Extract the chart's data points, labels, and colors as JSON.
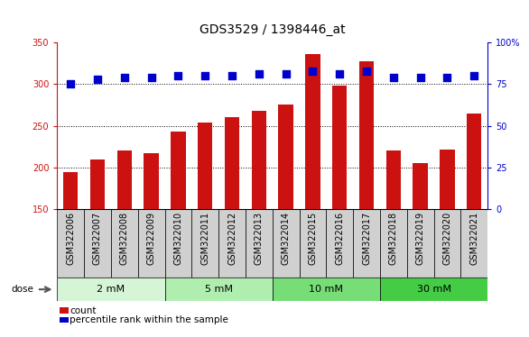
{
  "title": "GDS3529 / 1398446_at",
  "samples": [
    "GSM322006",
    "GSM322007",
    "GSM322008",
    "GSM322009",
    "GSM322010",
    "GSM322011",
    "GSM322012",
    "GSM322013",
    "GSM322014",
    "GSM322015",
    "GSM322016",
    "GSM322017",
    "GSM322018",
    "GSM322019",
    "GSM322020",
    "GSM322021"
  ],
  "counts": [
    195,
    210,
    221,
    217,
    243,
    254,
    260,
    268,
    276,
    336,
    298,
    327,
    221,
    205,
    222,
    265
  ],
  "percentiles": [
    75,
    78,
    79,
    79,
    80,
    80,
    80,
    81,
    81,
    83,
    81,
    83,
    79,
    79,
    79,
    80
  ],
  "doses": [
    {
      "label": "2 mM",
      "start": 0,
      "end": 4,
      "color": "#d6f5d6"
    },
    {
      "label": "5 mM",
      "start": 4,
      "end": 8,
      "color": "#b0eeb0"
    },
    {
      "label": "10 mM",
      "start": 8,
      "end": 12,
      "color": "#77dd77"
    },
    {
      "label": "30 mM",
      "start": 12,
      "end": 16,
      "color": "#44cc44"
    }
  ],
  "bar_color": "#cc1111",
  "dot_color": "#0000cc",
  "ylim_left": [
    150,
    350
  ],
  "ylim_right": [
    0,
    100
  ],
  "yticks_left": [
    150,
    200,
    250,
    300,
    350
  ],
  "yticks_right": [
    0,
    25,
    50,
    75,
    100
  ],
  "yticklabels_right": [
    "0",
    "25",
    "50",
    "75",
    "100%"
  ],
  "bar_bottom": 150,
  "grid_values": [
    200,
    250,
    300
  ],
  "title_fontsize": 10,
  "tick_fontsize": 7,
  "bar_width": 0.55,
  "dot_size": 28,
  "sample_box_color": "#d0d0d0",
  "plot_bg": "#ffffff"
}
